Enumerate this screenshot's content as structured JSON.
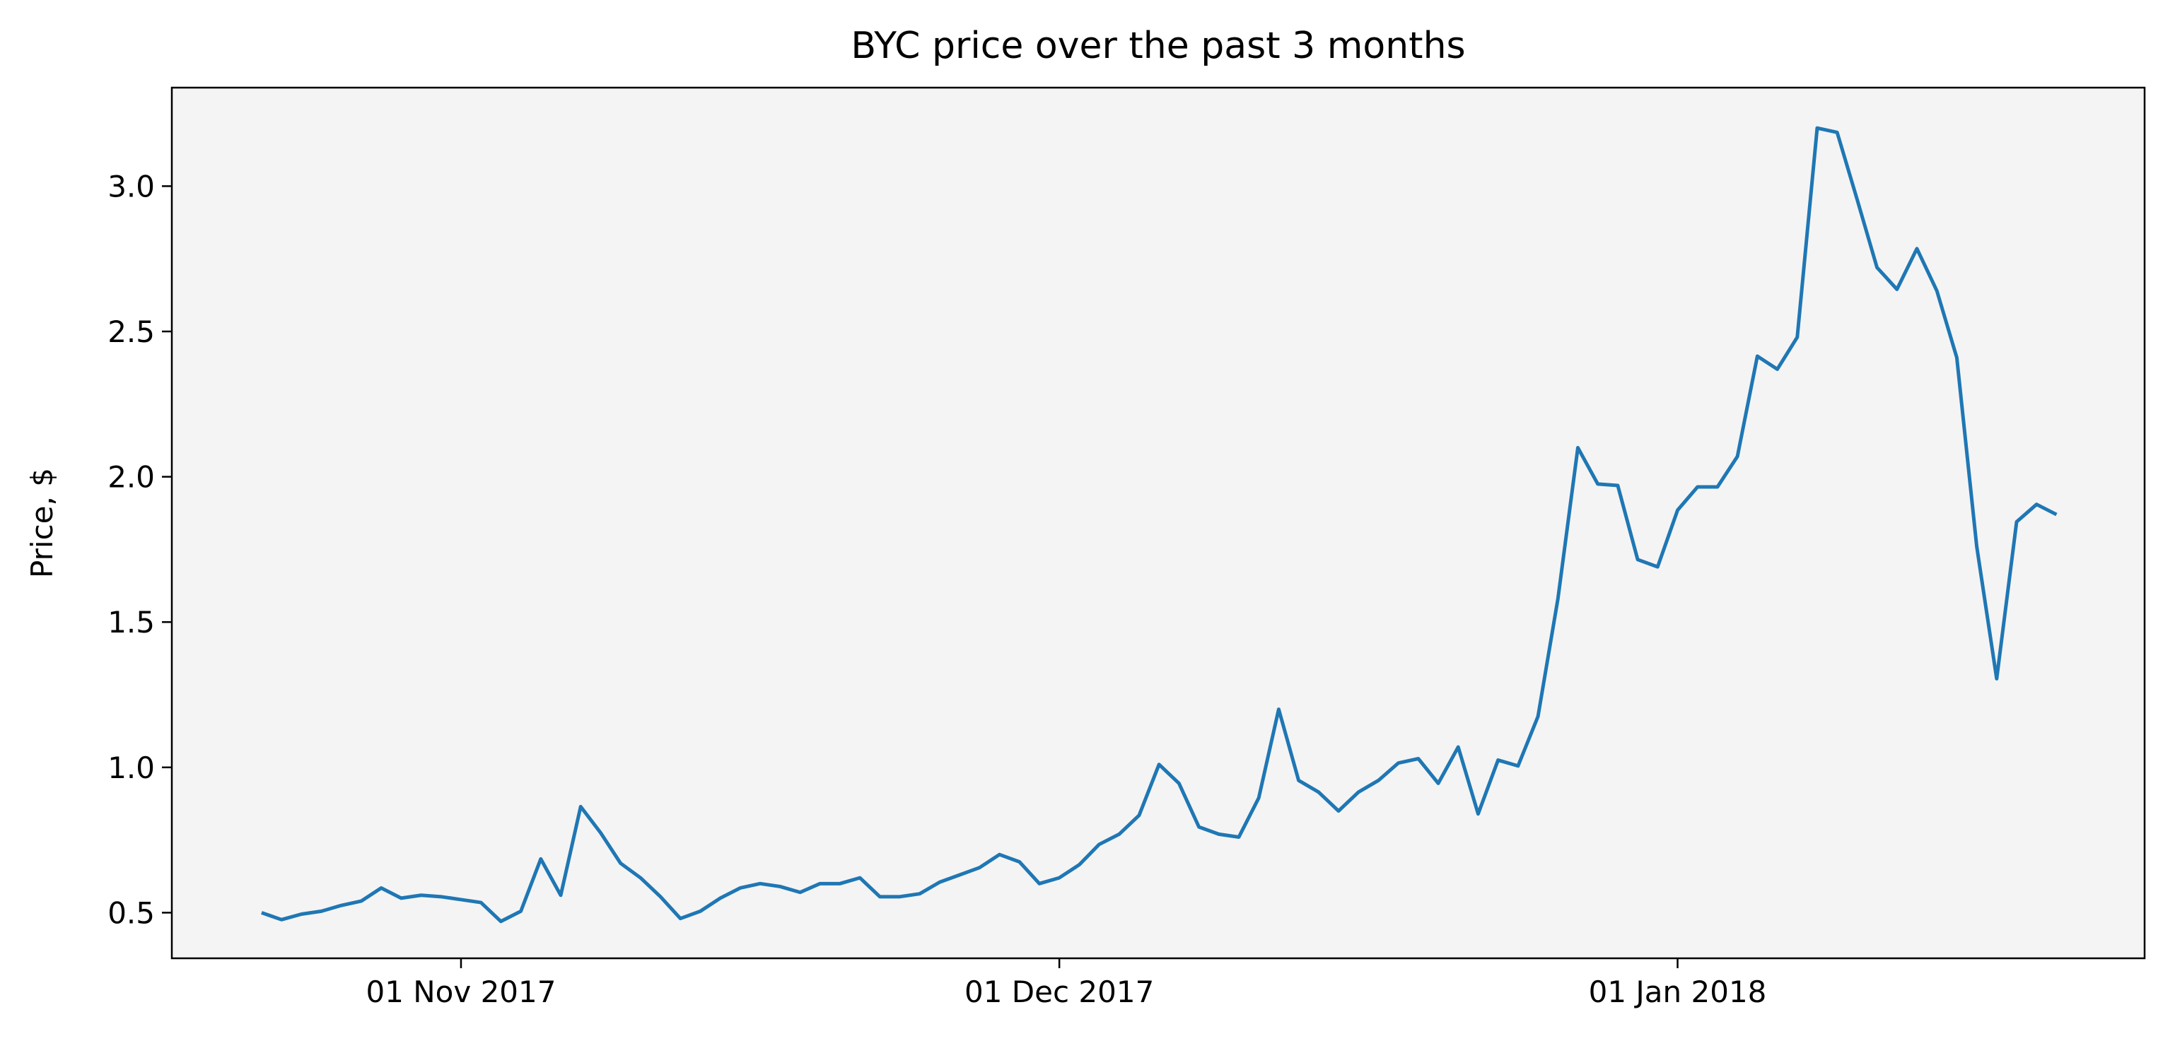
{
  "chart_data": {
    "type": "line",
    "title": "BYC price over the past 3 months",
    "y_label": "Price, $",
    "x": [
      "2017-10-22",
      "2017-10-23",
      "2017-10-24",
      "2017-10-25",
      "2017-10-26",
      "2017-10-27",
      "2017-10-28",
      "2017-10-29",
      "2017-10-30",
      "2017-10-31",
      "2017-11-01",
      "2017-11-02",
      "2017-11-03",
      "2017-11-04",
      "2017-11-05",
      "2017-11-06",
      "2017-11-07",
      "2017-11-08",
      "2017-11-09",
      "2017-11-10",
      "2017-11-11",
      "2017-11-12",
      "2017-11-13",
      "2017-11-14",
      "2017-11-15",
      "2017-11-16",
      "2017-11-17",
      "2017-11-18",
      "2017-11-19",
      "2017-11-20",
      "2017-11-21",
      "2017-11-22",
      "2017-11-23",
      "2017-11-24",
      "2017-11-25",
      "2017-11-26",
      "2017-11-27",
      "2017-11-28",
      "2017-11-29",
      "2017-11-30",
      "2017-12-01",
      "2017-12-02",
      "2017-12-03",
      "2017-12-04",
      "2017-12-05",
      "2017-12-06",
      "2017-12-07",
      "2017-12-08",
      "2017-12-09",
      "2017-12-10",
      "2017-12-11",
      "2017-12-12",
      "2017-12-13",
      "2017-12-14",
      "2017-12-15",
      "2017-12-16",
      "2017-12-17",
      "2017-12-18",
      "2017-12-19",
      "2017-12-20",
      "2017-12-21",
      "2017-12-22",
      "2017-12-23",
      "2017-12-24",
      "2017-12-25",
      "2017-12-26",
      "2017-12-27",
      "2017-12-28",
      "2017-12-29",
      "2017-12-30",
      "2017-12-31",
      "2018-01-01",
      "2018-01-02",
      "2018-01-03",
      "2018-01-04",
      "2018-01-05",
      "2018-01-06",
      "2018-01-07",
      "2018-01-08",
      "2018-01-09",
      "2018-01-10",
      "2018-01-11",
      "2018-01-12",
      "2018-01-13",
      "2018-01-14",
      "2018-01-15",
      "2018-01-16",
      "2018-01-17",
      "2018-01-18",
      "2018-01-19",
      "2018-01-20"
    ],
    "series": [
      {
        "name": "BYC",
        "color": "#1f77b4",
        "values": [
          0.5,
          0.476,
          0.495,
          0.505,
          0.525,
          0.54,
          0.585,
          0.55,
          0.56,
          0.555,
          0.545,
          0.535,
          0.47,
          0.505,
          0.685,
          0.56,
          0.865,
          0.775,
          0.67,
          0.62,
          0.555,
          0.48,
          0.505,
          0.55,
          0.585,
          0.6,
          0.59,
          0.57,
          0.6,
          0.6,
          0.62,
          0.555,
          0.555,
          0.565,
          0.605,
          0.63,
          0.655,
          0.7,
          0.675,
          0.6,
          0.62,
          0.665,
          0.735,
          0.77,
          0.835,
          1.01,
          0.945,
          0.795,
          0.77,
          0.76,
          0.895,
          1.2,
          0.955,
          0.915,
          0.85,
          0.915,
          0.955,
          1.015,
          1.03,
          0.945,
          1.07,
          0.84,
          1.025,
          1.005,
          1.175,
          1.58,
          2.1,
          1.975,
          1.97,
          1.715,
          1.69,
          1.885,
          1.965,
          1.965,
          2.07,
          2.415,
          2.37,
          2.48,
          3.2,
          3.185,
          2.955,
          2.72,
          2.645,
          2.785,
          2.64,
          2.41,
          1.76,
          1.305,
          1.845,
          1.905,
          1.87
        ]
      }
    ],
    "xlim": [
      "2017-10-17T12:00",
      "2018-01-24T10:00"
    ],
    "xticks": [
      {
        "value": "2017-11-01",
        "label": "01 Nov 2017"
      },
      {
        "value": "2017-12-01",
        "label": "01 Dec 2017"
      },
      {
        "value": "2018-01-01",
        "label": "01 Jan 2018"
      }
    ],
    "ylim": [
      0.343,
      3.339
    ],
    "yticks": [
      {
        "value": 0.5,
        "label": "0.5"
      },
      {
        "value": 1.0,
        "label": "1.0"
      },
      {
        "value": 1.5,
        "label": "1.5"
      },
      {
        "value": 2.0,
        "label": "2.0"
      },
      {
        "value": 2.5,
        "label": "2.5"
      },
      {
        "value": 3.0,
        "label": "3.0"
      }
    ],
    "background": "#f4f4f4"
  }
}
